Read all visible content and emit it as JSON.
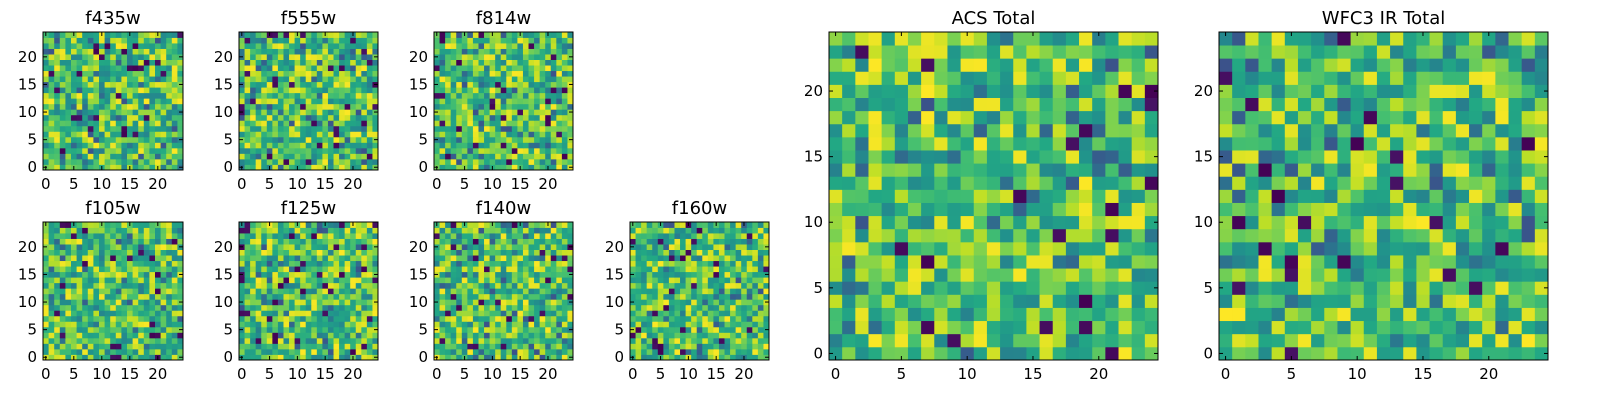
{
  "chart_data": [
    {
      "type": "heatmap",
      "title": "f435w",
      "x_ticks": [
        "0",
        "5",
        "10",
        "15",
        "20"
      ],
      "y_ticks": [
        "0",
        "5",
        "10",
        "15",
        "20"
      ],
      "xlim": [
        0,
        24
      ],
      "ylim": [
        0,
        24
      ],
      "colormap": "viridis",
      "grid": false,
      "seed": 11
    },
    {
      "type": "heatmap",
      "title": "f555w",
      "x_ticks": [
        "0",
        "5",
        "10",
        "15",
        "20"
      ],
      "y_ticks": [
        "0",
        "5",
        "10",
        "15",
        "20"
      ],
      "xlim": [
        0,
        24
      ],
      "ylim": [
        0,
        24
      ],
      "colormap": "viridis",
      "grid": false,
      "seed": 23
    },
    {
      "type": "heatmap",
      "title": "f814w",
      "x_ticks": [
        "0",
        "5",
        "10",
        "15",
        "20"
      ],
      "y_ticks": [
        "0",
        "5",
        "10",
        "15",
        "20"
      ],
      "xlim": [
        0,
        24
      ],
      "ylim": [
        0,
        24
      ],
      "colormap": "viridis",
      "grid": false,
      "seed": 37
    },
    {
      "type": "heatmap",
      "title": "f105w",
      "x_ticks": [
        "0",
        "5",
        "10",
        "15",
        "20"
      ],
      "y_ticks": [
        "0",
        "5",
        "10",
        "15",
        "20"
      ],
      "xlim": [
        0,
        24
      ],
      "ylim": [
        0,
        24
      ],
      "colormap": "viridis",
      "grid": false,
      "seed": 41
    },
    {
      "type": "heatmap",
      "title": "f125w",
      "x_ticks": [
        "0",
        "5",
        "10",
        "15",
        "20"
      ],
      "y_ticks": [
        "0",
        "5",
        "10",
        "15",
        "20"
      ],
      "xlim": [
        0,
        24
      ],
      "ylim": [
        0,
        24
      ],
      "colormap": "viridis",
      "grid": false,
      "seed": 53
    },
    {
      "type": "heatmap",
      "title": "f140w",
      "x_ticks": [
        "0",
        "5",
        "10",
        "15",
        "20"
      ],
      "y_ticks": [
        "0",
        "5",
        "10",
        "15",
        "20"
      ],
      "xlim": [
        0,
        24
      ],
      "ylim": [
        0,
        24
      ],
      "colormap": "viridis",
      "grid": false,
      "seed": 67
    },
    {
      "type": "heatmap",
      "title": "f160w",
      "x_ticks": [
        "0",
        "5",
        "10",
        "15",
        "20"
      ],
      "y_ticks": [
        "0",
        "5",
        "10",
        "15",
        "20"
      ],
      "xlim": [
        0,
        24
      ],
      "ylim": [
        0,
        24
      ],
      "colormap": "viridis",
      "grid": false,
      "seed": 79
    },
    {
      "type": "heatmap",
      "title": "ACS Total",
      "x_ticks": [
        "0",
        "5",
        "10",
        "15",
        "20"
      ],
      "y_ticks": [
        "0",
        "5",
        "10",
        "15",
        "20"
      ],
      "xlim": [
        0,
        24
      ],
      "ylim": [
        0,
        24
      ],
      "colormap": "viridis",
      "grid": false,
      "seed": 83
    },
    {
      "type": "heatmap",
      "title": "WFC3 IR Total",
      "x_ticks": [
        "0",
        "5",
        "10",
        "15",
        "20"
      ],
      "y_ticks": [
        "0",
        "5",
        "10",
        "15",
        "20"
      ],
      "xlim": [
        0,
        24
      ],
      "ylim": [
        0,
        24
      ],
      "colormap": "viridis",
      "grid": false,
      "seed": 97
    }
  ]
}
